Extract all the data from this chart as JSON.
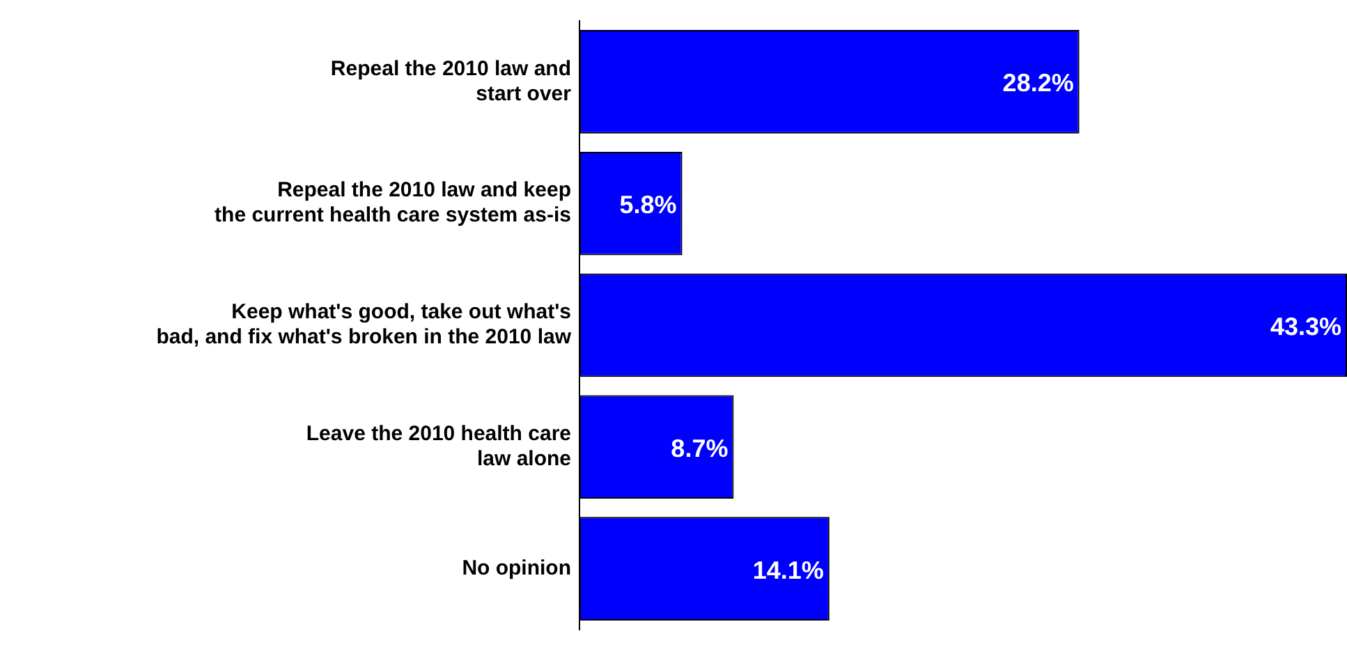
{
  "chart_data": {
    "type": "bar",
    "orientation": "horizontal",
    "categories": [
      "Repeal the 2010 law and\nstart over",
      "Repeal the 2010 law and keep\nthe current health care system as-is",
      "Keep what's good, take out what's\nbad, and fix what's broken in the 2010 law",
      "Leave the 2010 health care\nlaw alone",
      "No opinion"
    ],
    "values": [
      28.2,
      5.8,
      43.3,
      8.7,
      14.1
    ],
    "value_labels": [
      "28.2%",
      "5.8%",
      "43.3%",
      "8.7%",
      "14.1%"
    ],
    "color": "#0000ff",
    "legend": false,
    "tick_labels": "y"
  }
}
